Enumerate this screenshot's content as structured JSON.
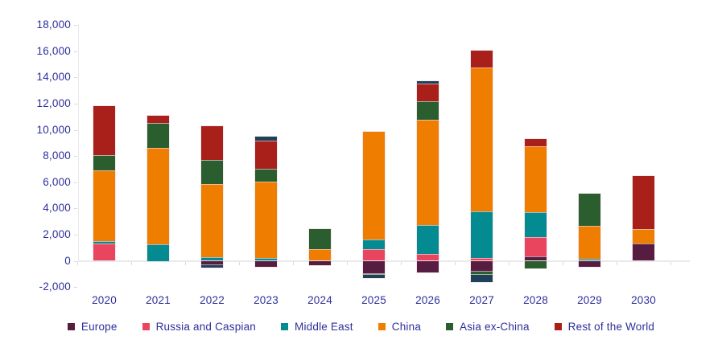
{
  "chart_data": {
    "type": "bar",
    "stacked": true,
    "title": "",
    "xlabel": "",
    "ylabel": "",
    "ylim": [
      -2000,
      18000
    ],
    "ytick_step": 2000,
    "grid": false,
    "legend_position": "bottom",
    "text_color": "#2e2f9c",
    "axis_line_color": "#e9e9ee",
    "categories": [
      "2020",
      "2021",
      "2022",
      "2023",
      "2024",
      "2025",
      "2026",
      "2027",
      "2028",
      "2029",
      "2030"
    ],
    "series": [
      {
        "name": "Europe",
        "color": "#571d40",
        "in_legend": true,
        "values": [
          0,
          0,
          -350,
          -450,
          -350,
          -1000,
          -900,
          -800,
          350,
          -450,
          1300
        ]
      },
      {
        "name": "Russia and Caspian",
        "color": "#e9455e",
        "in_legend": true,
        "values": [
          1300,
          0,
          0,
          0,
          0,
          900,
          550,
          200,
          1450,
          0,
          0
        ]
      },
      {
        "name": "Middle East",
        "color": "#048a91",
        "in_legend": true,
        "values": [
          200,
          1250,
          300,
          200,
          0,
          700,
          2200,
          3550,
          1900,
          150,
          0
        ]
      },
      {
        "name": "China",
        "color": "#ef7d00",
        "in_legend": true,
        "values": [
          5400,
          7350,
          5550,
          5850,
          900,
          8250,
          8000,
          11000,
          5050,
          2500,
          1150
        ]
      },
      {
        "name": "Asia ex-China",
        "color": "#2b5e2f",
        "in_legend": true,
        "values": [
          1150,
          1900,
          1850,
          950,
          1550,
          -100,
          1450,
          -250,
          -600,
          2500,
          0
        ]
      },
      {
        "name": "Rest of the World",
        "color": "#a91f1a",
        "in_legend": true,
        "values": [
          3750,
          600,
          2550,
          2150,
          0,
          0,
          1300,
          1300,
          550,
          0,
          4000
        ]
      },
      {
        "name": "unlabeled",
        "color": "#1d4257",
        "in_legend": false,
        "values": [
          0,
          0,
          -150,
          300,
          0,
          -250,
          200,
          -550,
          0,
          0,
          0
        ]
      }
    ]
  }
}
